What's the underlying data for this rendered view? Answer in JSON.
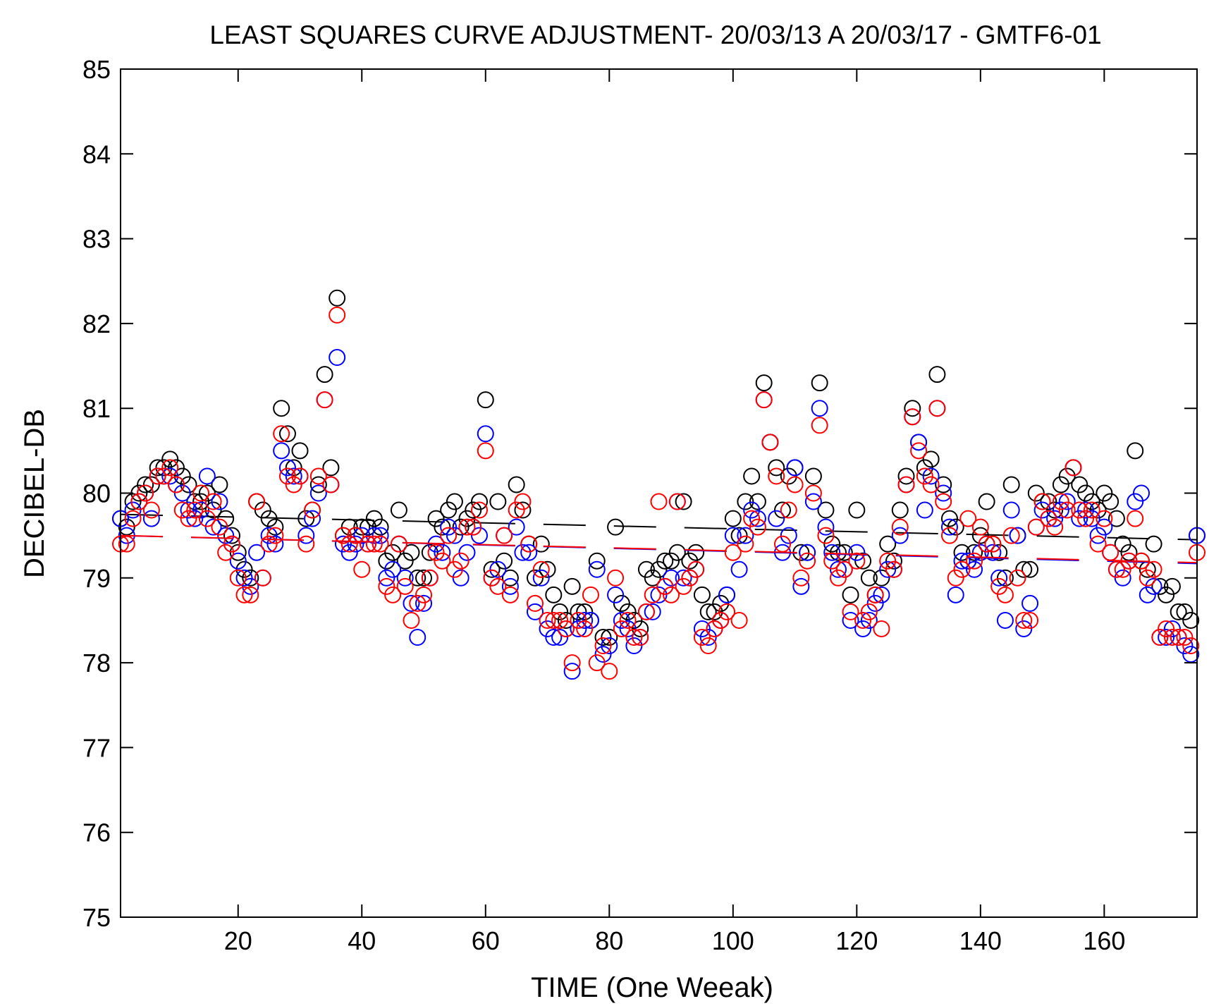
{
  "chart_data": {
    "type": "scatter",
    "title": "LEAST SQUARES CURVE ADJUSTMENT- 20/03/13 A 20/03/17 - GMTF6-01",
    "xlabel": "TIME (One Weeak)",
    "ylabel": "DECIBEL-DB",
    "xlim": [
      1,
      175
    ],
    "ylim": [
      75,
      85
    ],
    "xticks": [
      20,
      40,
      60,
      80,
      100,
      120,
      140,
      160
    ],
    "yticks": [
      75,
      76,
      77,
      78,
      79,
      80,
      81,
      82,
      83,
      84,
      85
    ],
    "grid": false,
    "marker": "circle",
    "series": [
      {
        "name": "black",
        "color": "#000000",
        "x": [
          1,
          2,
          3,
          4,
          5,
          6,
          7,
          8,
          9,
          10,
          11,
          12,
          13,
          14,
          15,
          16,
          17,
          18,
          19,
          20,
          21,
          22,
          23,
          24,
          25,
          26,
          27,
          28,
          29,
          30,
          31,
          32,
          33,
          34,
          35,
          36,
          37,
          38,
          39,
          40,
          41,
          42,
          43,
          44,
          45,
          46,
          47,
          48,
          49,
          50,
          51,
          52,
          53,
          54,
          55,
          56,
          57,
          58,
          59,
          60,
          61,
          62,
          63,
          64,
          65,
          66,
          67,
          68,
          69,
          70,
          71,
          72,
          73,
          74,
          75,
          76,
          77,
          78,
          79,
          80,
          81,
          82,
          83,
          84,
          85,
          86,
          87,
          88,
          89,
          90,
          91,
          92,
          93,
          94,
          95,
          96,
          97,
          98,
          99,
          100,
          101,
          102,
          103,
          104,
          105,
          106,
          107,
          108,
          109,
          110,
          111,
          112,
          113,
          114,
          115,
          116,
          117,
          118,
          119,
          120,
          121,
          122,
          123,
          124,
          125,
          126,
          127,
          128,
          129,
          130,
          131,
          132,
          133,
          134,
          135,
          136,
          137,
          138,
          139,
          140,
          141,
          142,
          143,
          144,
          145,
          146,
          147,
          148,
          149,
          150,
          151,
          152,
          153,
          154,
          155,
          156,
          157,
          158,
          159,
          160,
          161,
          162,
          163,
          164,
          165,
          166,
          167,
          168,
          169,
          170,
          171,
          172,
          173,
          174,
          175
        ],
        "values": [
          79.7,
          79.6,
          79.9,
          80.0,
          80.1,
          80.1,
          80.3,
          80.3,
          80.4,
          80.3,
          80.2,
          80.1,
          79.9,
          79.9,
          80.0,
          79.8,
          80.1,
          79.7,
          79.5,
          79.3,
          79.1,
          79.0,
          79.9,
          79.8,
          79.7,
          79.6,
          81.0,
          80.7,
          80.3,
          80.5,
          79.7,
          79.8,
          80.1,
          81.4,
          80.3,
          82.3,
          79.5,
          79.6,
          79.5,
          79.6,
          79.6,
          79.7,
          79.6,
          79.2,
          79.3,
          79.8,
          79.2,
          79.3,
          79.0,
          79.0,
          79.3,
          79.7,
          79.6,
          79.8,
          79.9,
          79.6,
          79.7,
          79.8,
          79.9,
          81.1,
          79.1,
          79.9,
          79.2,
          79.0,
          80.1,
          79.8,
          79.4,
          79.0,
          79.4,
          79.1,
          78.8,
          78.6,
          78.5,
          78.9,
          78.6,
          78.6,
          78.5,
          79.2,
          78.3,
          78.3,
          79.6,
          78.7,
          78.6,
          78.5,
          78.4,
          79.1,
          79.0,
          79.1,
          79.2,
          79.2,
          79.3,
          79.9,
          79.2,
          79.3,
          78.8,
          78.6,
          78.6,
          78.7,
          78.8,
          79.7,
          79.5,
          79.9,
          80.2,
          79.9,
          81.3,
          80.6,
          80.3,
          79.8,
          80.2,
          80.3,
          79.3,
          79.3,
          80.2,
          81.3,
          79.8,
          79.4,
          79.3,
          79.3,
          78.8,
          79.8,
          79.2,
          79.0,
          78.8,
          79.0,
          79.4,
          79.2,
          79.8,
          80.2,
          81.0,
          80.6,
          80.3,
          80.4,
          81.4,
          80.1,
          79.7,
          79.6,
          79.3,
          79.2,
          79.3,
          79.5,
          79.9,
          79.4,
          79.3,
          79.0,
          80.1,
          79.5,
          79.1,
          79.1,
          80.0,
          79.9,
          79.9,
          79.8,
          80.1,
          80.2,
          80.3,
          80.1,
          80.0,
          79.9,
          79.8,
          80.0,
          79.9,
          79.7,
          79.4,
          79.3,
          80.5,
          79.2,
          79.1,
          79.4,
          78.9,
          78.8,
          78.9,
          78.6,
          78.6,
          78.5,
          79.5
        ],
        "fit_x": [
          1,
          175
        ],
        "fit_values": [
          79.75,
          79.45
        ]
      },
      {
        "name": "blue",
        "color": "#0000ff",
        "x": [
          1,
          2,
          3,
          4,
          5,
          6,
          7,
          8,
          9,
          10,
          11,
          12,
          13,
          14,
          15,
          16,
          17,
          18,
          19,
          20,
          21,
          22,
          23,
          24,
          25,
          26,
          27,
          28,
          29,
          30,
          31,
          32,
          33,
          34,
          35,
          36,
          37,
          38,
          39,
          40,
          41,
          42,
          43,
          44,
          45,
          46,
          47,
          48,
          49,
          50,
          51,
          52,
          53,
          54,
          55,
          56,
          57,
          58,
          59,
          60,
          61,
          62,
          63,
          64,
          65,
          66,
          67,
          68,
          69,
          70,
          71,
          72,
          73,
          74,
          75,
          76,
          77,
          78,
          79,
          80,
          81,
          82,
          83,
          84,
          85,
          86,
          87,
          88,
          89,
          90,
          91,
          92,
          93,
          94,
          95,
          96,
          97,
          98,
          99,
          100,
          101,
          102,
          103,
          104,
          105,
          106,
          107,
          108,
          109,
          110,
          111,
          112,
          113,
          114,
          115,
          116,
          117,
          118,
          119,
          120,
          121,
          122,
          123,
          124,
          125,
          126,
          127,
          128,
          129,
          130,
          131,
          132,
          133,
          134,
          135,
          136,
          137,
          138,
          139,
          140,
          141,
          142,
          143,
          144,
          145,
          146,
          147,
          148,
          149,
          150,
          151,
          152,
          153,
          154,
          155,
          156,
          157,
          158,
          159,
          160,
          161,
          162,
          163,
          164,
          165,
          166,
          167,
          168,
          169,
          170,
          171,
          172,
          173,
          174,
          175
        ],
        "values": [
          79.7,
          79.5,
          79.8,
          79.9,
          80.0,
          79.7,
          80.2,
          80.2,
          80.2,
          80.1,
          80.0,
          79.8,
          79.7,
          79.8,
          80.2,
          79.6,
          79.9,
          79.5,
          79.4,
          79.2,
          79.0,
          78.9,
          79.3,
          79.0,
          79.5,
          79.4,
          80.5,
          80.3,
          80.2,
          80.2,
          79.5,
          79.7,
          80.0,
          81.1,
          80.1,
          81.6,
          79.4,
          79.3,
          79.4,
          79.5,
          79.4,
          79.5,
          79.5,
          79.0,
          79.1,
          79.4,
          79.0,
          78.7,
          78.3,
          78.7,
          79.0,
          79.4,
          79.3,
          79.6,
          79.5,
          79.0,
          79.3,
          79.6,
          79.5,
          80.7,
          79.0,
          79.1,
          79.5,
          78.9,
          79.6,
          79.3,
          79.3,
          78.6,
          79.0,
          78.4,
          78.3,
          78.3,
          78.4,
          77.9,
          78.4,
          78.5,
          78.5,
          79.1,
          78.1,
          78.2,
          78.8,
          78.5,
          78.4,
          78.2,
          78.3,
          78.6,
          78.6,
          78.8,
          78.9,
          79.0,
          79.9,
          79.0,
          79.0,
          79.1,
          78.4,
          78.3,
          78.4,
          78.5,
          78.8,
          79.5,
          79.1,
          79.5,
          79.8,
          79.7,
          81.1,
          80.6,
          79.7,
          79.3,
          79.5,
          80.3,
          78.9,
          79.3,
          79.9,
          81.0,
          79.6,
          79.3,
          79.1,
          79.1,
          78.5,
          79.3,
          78.4,
          78.5,
          78.7,
          78.8,
          79.1,
          79.1,
          79.5,
          80.1,
          80.9,
          80.6,
          79.8,
          80.2,
          81.0,
          80.0,
          79.6,
          78.8,
          79.2,
          79.2,
          79.1,
          79.3,
          79.4,
          79.3,
          79.0,
          78.5,
          79.8,
          79.5,
          78.4,
          78.7,
          79.6,
          79.8,
          79.7,
          79.7,
          79.8,
          79.9,
          80.3,
          79.7,
          79.8,
          79.7,
          79.5,
          79.6,
          79.3,
          79.1,
          79.0,
          79.2,
          79.9,
          80.0,
          78.8,
          78.9,
          78.3,
          78.3,
          78.4,
          78.3,
          78.2,
          78.1,
          79.5
        ],
        "fit_x": [
          1,
          175
        ],
        "fit_values": [
          79.5,
          79.17
        ]
      },
      {
        "name": "red",
        "color": "#ff0000",
        "x": [
          1,
          2,
          3,
          4,
          5,
          6,
          7,
          8,
          9,
          10,
          11,
          12,
          13,
          14,
          15,
          16,
          17,
          18,
          19,
          20,
          21,
          22,
          23,
          24,
          25,
          26,
          27,
          28,
          29,
          30,
          31,
          32,
          33,
          34,
          35,
          36,
          37,
          38,
          39,
          40,
          41,
          42,
          43,
          44,
          45,
          46,
          47,
          48,
          49,
          50,
          51,
          52,
          53,
          54,
          55,
          56,
          57,
          58,
          59,
          60,
          61,
          62,
          63,
          64,
          65,
          66,
          67,
          68,
          69,
          70,
          71,
          72,
          73,
          74,
          75,
          76,
          77,
          78,
          79,
          80,
          81,
          82,
          83,
          84,
          85,
          86,
          87,
          88,
          89,
          90,
          91,
          92,
          93,
          94,
          95,
          96,
          97,
          98,
          99,
          100,
          101,
          102,
          103,
          104,
          105,
          106,
          107,
          108,
          109,
          110,
          111,
          112,
          113,
          114,
          115,
          116,
          117,
          118,
          119,
          120,
          121,
          122,
          123,
          124,
          125,
          126,
          127,
          128,
          129,
          130,
          131,
          132,
          133,
          134,
          135,
          136,
          137,
          138,
          139,
          140,
          141,
          142,
          143,
          144,
          145,
          146,
          147,
          148,
          149,
          150,
          151,
          152,
          153,
          154,
          155,
          156,
          157,
          158,
          159,
          160,
          161,
          162,
          163,
          164,
          165,
          166,
          167,
          168,
          169,
          170,
          171,
          172,
          173,
          174,
          175
        ],
        "values": [
          79.4,
          79.4,
          79.7,
          79.9,
          80.0,
          79.8,
          80.2,
          80.2,
          80.3,
          80.1,
          79.8,
          79.7,
          79.8,
          80.0,
          79.7,
          79.9,
          79.6,
          79.3,
          79.4,
          79.0,
          78.8,
          78.8,
          79.9,
          79.0,
          79.4,
          79.5,
          80.7,
          80.2,
          80.1,
          80.2,
          79.4,
          79.8,
          80.2,
          81.1,
          80.1,
          82.1,
          79.5,
          79.4,
          79.5,
          79.1,
          79.4,
          79.4,
          79.4,
          78.9,
          78.8,
          79.4,
          78.9,
          78.5,
          78.7,
          78.8,
          79.0,
          79.3,
          79.2,
          79.5,
          79.1,
          79.2,
          79.6,
          79.6,
          79.8,
          80.5,
          79.0,
          78.9,
          79.5,
          78.8,
          79.8,
          79.9,
          79.4,
          78.7,
          79.1,
          78.5,
          78.5,
          78.5,
          78.4,
          78.0,
          78.5,
          78.4,
          78.8,
          78.0,
          78.2,
          77.9,
          79.0,
          78.4,
          78.5,
          78.3,
          78.3,
          78.6,
          78.8,
          79.9,
          78.9,
          78.8,
          79.9,
          78.9,
          79.0,
          79.1,
          78.3,
          78.2,
          78.4,
          78.5,
          78.6,
          79.3,
          78.5,
          79.4,
          79.7,
          79.6,
          81.1,
          80.6,
          80.2,
          79.4,
          79.8,
          80.1,
          79.0,
          79.2,
          80.0,
          80.8,
          79.5,
          79.2,
          79.0,
          79.1,
          78.6,
          79.2,
          78.5,
          78.6,
          78.8,
          78.4,
          79.2,
          79.1,
          79.6,
          80.1,
          80.9,
          80.5,
          80.2,
          80.1,
          81.0,
          79.9,
          79.5,
          79.0,
          79.1,
          79.7,
          79.2,
          79.6,
          79.4,
          79.4,
          78.9,
          78.8,
          79.5,
          79.0,
          78.5,
          78.5,
          79.6,
          79.9,
          79.7,
          79.6,
          79.9,
          79.8,
          80.3,
          79.8,
          79.7,
          79.8,
          79.4,
          79.7,
          79.3,
          79.1,
          79.1,
          79.2,
          79.7,
          79.2,
          79.0,
          79.1,
          78.3,
          78.4,
          78.3,
          78.3,
          78.3,
          78.2,
          79.3
        ],
        "fit_x": [
          1,
          175
        ],
        "fit_values": [
          79.5,
          79.18
        ]
      }
    ]
  }
}
